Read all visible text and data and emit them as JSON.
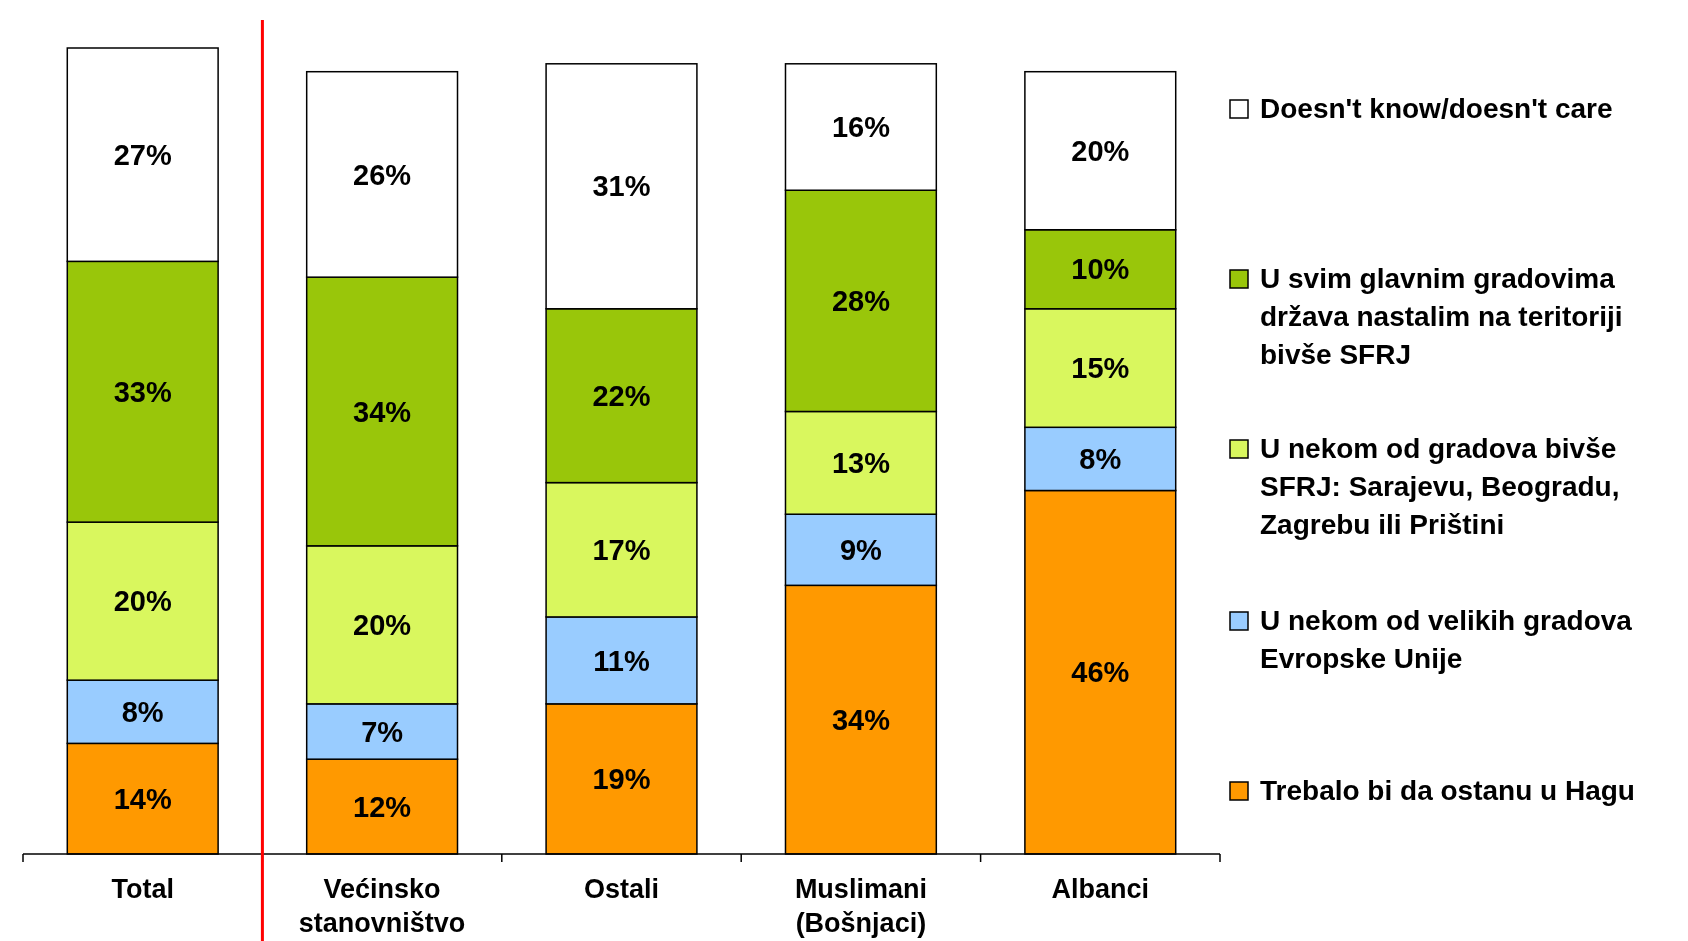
{
  "chart_data": {
    "type": "bar",
    "stacked": true,
    "legend": "right",
    "categories": [
      "Total",
      "Većinsko stanovništvo",
      "Ostali",
      "Muslimani (Bošnjaci)",
      "Albanci"
    ],
    "series": [
      {
        "name": "Trebalo bi da ostanu u Hagu",
        "color": "#ff9900",
        "values": [
          14,
          12,
          19,
          34,
          46
        ],
        "value_labels": [
          "14%",
          "12%",
          "19%",
          "34%",
          "46%"
        ]
      },
      {
        "name": "U nekom od velikih gradova Evropske Unije",
        "color": "#99ccff",
        "values": [
          8,
          7,
          11,
          9,
          8
        ],
        "value_labels": [
          "8%",
          "7%",
          "11%",
          "9%",
          "8%"
        ]
      },
      {
        "name": "U nekom od gradova bivše SFRJ: Sarajevu, Beogradu, Zagrebu ili Prištini",
        "color": "#d9f75e",
        "values": [
          20,
          20,
          17,
          13,
          15
        ],
        "value_labels": [
          "20%",
          "20%",
          "17%",
          "13%",
          "15%"
        ]
      },
      {
        "name": "U svim glavnim gradovima država nastalim na teritoriji bivše SFRJ",
        "color": "#99c60a",
        "values": [
          33,
          34,
          22,
          28,
          10
        ],
        "value_labels": [
          "33%",
          "34%",
          "22%",
          "28%",
          "10%"
        ]
      },
      {
        "name": "Doesn't know/doesn't care",
        "color": "#ffffff",
        "values": [
          27,
          26,
          31,
          16,
          20
        ],
        "value_labels": [
          "27%",
          "26%",
          "31%",
          "16%",
          "20%"
        ]
      }
    ]
  }
}
